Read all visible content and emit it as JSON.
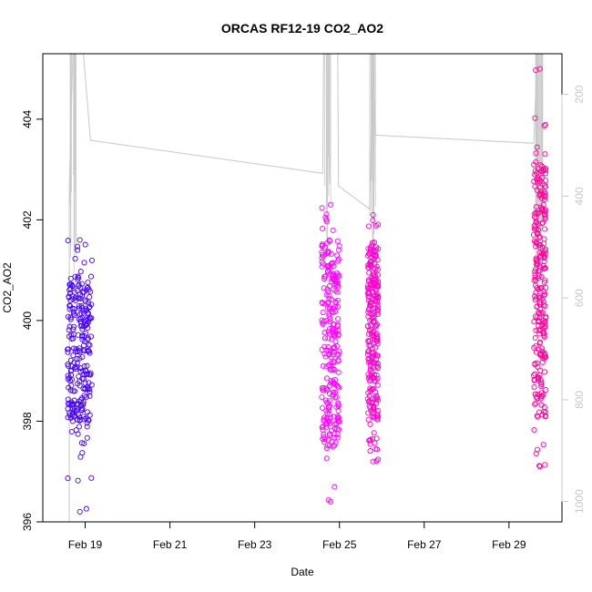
{
  "chart_data": {
    "type": "scatter",
    "title": "ORCAS RF12-19 CO2_AO2",
    "xlabel": "Date",
    "ylabel": "CO2_AO2",
    "x_axis": {
      "unit": "days",
      "range": [
        "2016-02-18T00:00",
        "2016-03-01T06:00"
      ],
      "ticks": [
        {
          "label": "Feb 19",
          "date": "2016-02-19"
        },
        {
          "label": "Feb 21",
          "date": "2016-02-21"
        },
        {
          "label": "Feb 23",
          "date": "2016-02-23"
        },
        {
          "label": "Feb 25",
          "date": "2016-02-25"
        },
        {
          "label": "Feb 27",
          "date": "2016-02-27"
        },
        {
          "label": "Feb 29",
          "date": "2016-02-29"
        }
      ]
    },
    "y_axis": {
      "range": [
        396,
        405.3
      ],
      "ticks": [
        396,
        398,
        400,
        402,
        404
      ]
    },
    "y2_axis": {
      "range": [
        1040,
        120
      ],
      "ticks": [
        200,
        400,
        600,
        800,
        1000
      ],
      "color": "#c8c8c8"
    },
    "grid": false,
    "legend": "none",
    "series": [
      {
        "color": "#4400ff",
        "date_range": [
          "2016-02-18T14:00",
          "2016-02-19T04:00"
        ],
        "y_min": 396.2,
        "y_max": 401.6,
        "y_core": [
          398.0,
          400.9
        ]
      },
      {
        "color": "#ff00ff",
        "date_range": [
          "2016-02-24T14:00",
          "2016-02-25T00:00"
        ],
        "y_min": 396.4,
        "y_max": 402.3,
        "y_core": [
          397.5,
          401.6
        ]
      },
      {
        "color": "#ff00cc",
        "date_range": [
          "2016-02-25T16:00",
          "2016-02-25T22:00"
        ],
        "y_min": 397.2,
        "y_max": 402.1,
        "y_core": [
          398.0,
          401.5
        ]
      },
      {
        "color": "#ff0099",
        "date_range": [
          "2016-02-29T14:00",
          "2016-02-29T21:00"
        ],
        "y_min": 397.1,
        "y_max": 405.0,
        "y_core": [
          398.0,
          403.2
        ]
      }
    ],
    "pressure_trace": {
      "color": "#c8c8c8",
      "axis": "y2",
      "vertices": [
        [
          "2016-02-18T15:00",
          1040
        ],
        [
          "2016-02-18T15:00",
          383
        ],
        [
          "2016-02-18T17:00",
          120
        ],
        [
          "2016-02-18T23:00",
          120
        ],
        [
          "2016-02-19T03:00",
          290
        ],
        [
          "2016-02-24T14:30",
          355
        ],
        [
          "2016-02-24T15:00",
          120
        ],
        [
          "2016-02-24T23:00",
          120
        ],
        [
          "2016-02-24T23:30",
          380
        ],
        [
          "2016-02-25T17:00",
          425
        ],
        [
          "2016-02-25T19:00",
          120
        ],
        [
          "2016-02-25T20:30",
          280
        ],
        [
          "2016-02-29T14:00",
          296
        ],
        [
          "2016-02-29T16:00",
          120
        ],
        [
          "2016-02-29T20:00",
          120
        ]
      ]
    }
  }
}
